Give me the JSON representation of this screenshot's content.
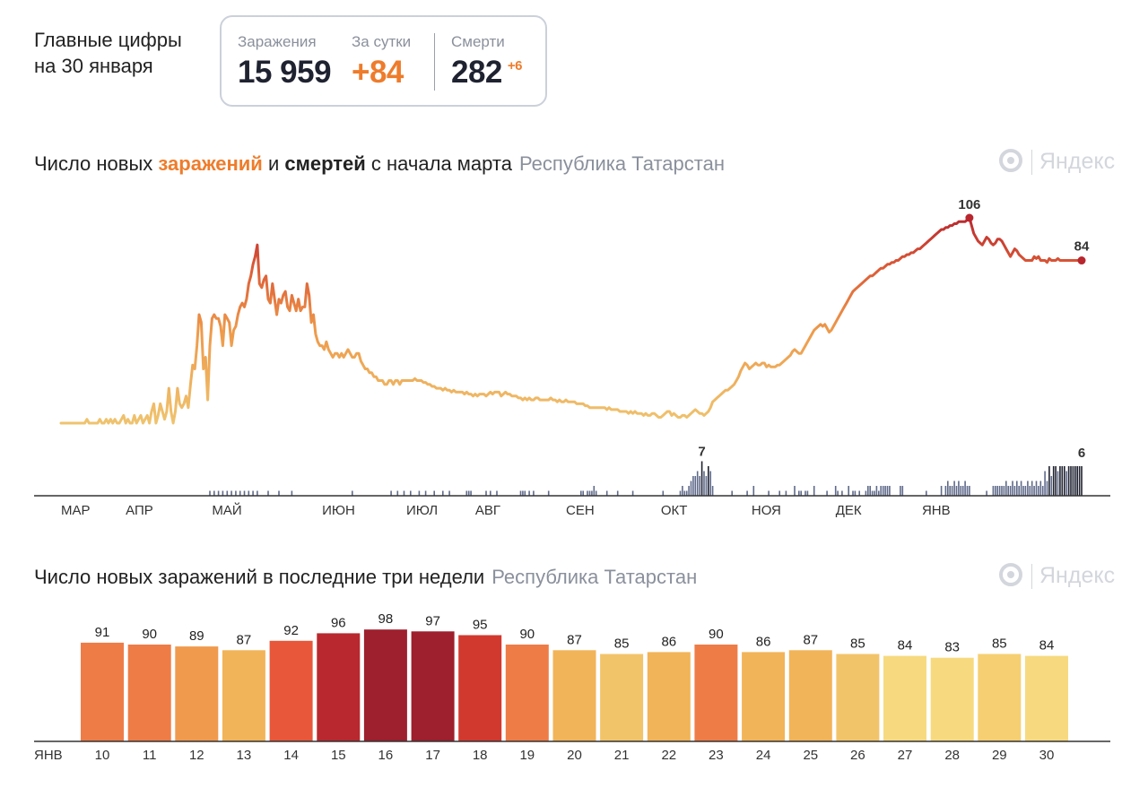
{
  "headline": {
    "line1": "Главные цифры",
    "line2": "на 30 января"
  },
  "stats": {
    "cases_label": "Заражения",
    "cases_value": "15 959",
    "daily_label": "За сутки",
    "daily_value": "+84",
    "deaths_label": "Смерти",
    "deaths_value": "282",
    "deaths_delta": "+6"
  },
  "logo_text": "Яндекс",
  "colors": {
    "accent": "#ee7c2b",
    "deaths_bar": "#5f6a8a",
    "axis": "#333333"
  },
  "chart_data": [
    {
      "type": "line",
      "title_parts": [
        "Число новых ",
        "заражений",
        " и ",
        "смертей",
        " с начала марта"
      ],
      "region": "Республика Татарстан",
      "months": [
        "МАР",
        "АПР",
        "МАЙ",
        "ИЮН",
        "ИЮЛ",
        "АВГ",
        "СЕН",
        "ОКТ",
        "НОЯ",
        "ДЕК",
        "ЯНВ"
      ],
      "month_index": [
        0,
        30,
        70,
        121,
        160,
        192,
        234,
        278,
        320,
        359,
        399
      ],
      "ylim": [
        0,
        106
      ],
      "cases_series": [
        0,
        0,
        0,
        0,
        0,
        0,
        0,
        0,
        0,
        0,
        0,
        0,
        2,
        0,
        0,
        0,
        0,
        0,
        2,
        0,
        0,
        2,
        0,
        2,
        0,
        2,
        0,
        0,
        2,
        4,
        0,
        2,
        0,
        0,
        4,
        0,
        2,
        4,
        0,
        2,
        4,
        0,
        6,
        10,
        0,
        4,
        10,
        6,
        2,
        6,
        18,
        6,
        0,
        6,
        18,
        10,
        8,
        10,
        14,
        8,
        20,
        30,
        28,
        40,
        56,
        52,
        28,
        34,
        12,
        40,
        54,
        56,
        54,
        54,
        50,
        40,
        56,
        54,
        52,
        40,
        48,
        50,
        56,
        60,
        62,
        60,
        64,
        72,
        76,
        82,
        86,
        92,
        72,
        70,
        74,
        76,
        64,
        62,
        72,
        64,
        56,
        64,
        62,
        66,
        68,
        60,
        58,
        66,
        62,
        58,
        64,
        58,
        60,
        60,
        72,
        66,
        52,
        56,
        46,
        42,
        40,
        40,
        38,
        42,
        38,
        36,
        34,
        36,
        36,
        34,
        36,
        34,
        36,
        38,
        36,
        34,
        34,
        36,
        36,
        32,
        30,
        28,
        28,
        26,
        26,
        24,
        24,
        22,
        22,
        22,
        20,
        20,
        22,
        22,
        20,
        22,
        22,
        20,
        22,
        22,
        22,
        22,
        22,
        22,
        23,
        22,
        22,
        22,
        21,
        21,
        20,
        20,
        19,
        19,
        18,
        18,
        18,
        17,
        18,
        17,
        17,
        16,
        17,
        16,
        16,
        16,
        16,
        15,
        16,
        15,
        15,
        14,
        15,
        14,
        15,
        15,
        15,
        14,
        15,
        16,
        15,
        16,
        16,
        16,
        14,
        15,
        16,
        15,
        15,
        14,
        14,
        14,
        13,
        13,
        12,
        13,
        12,
        13,
        12,
        12,
        13,
        13,
        12,
        12,
        12,
        12,
        12,
        13,
        12,
        12,
        11,
        12,
        11,
        11,
        12,
        11,
        11,
        11,
        11,
        10,
        10,
        10,
        10,
        9,
        9,
        8,
        8,
        8,
        8,
        8,
        8,
        8,
        8,
        7,
        8,
        7,
        7,
        7,
        7,
        6,
        6,
        6,
        6,
        5,
        6,
        5,
        6,
        5,
        5,
        5,
        4,
        5,
        4,
        4,
        5,
        5,
        4,
        3,
        3,
        4,
        5,
        6,
        6,
        4,
        5,
        4,
        3,
        3,
        4,
        4,
        3,
        4,
        5,
        6,
        7,
        6,
        5,
        5,
        4,
        5,
        6,
        8,
        11,
        12,
        13,
        14,
        15,
        16,
        17,
        17,
        18,
        19,
        20,
        22,
        24,
        27,
        29,
        31,
        30,
        28,
        29,
        30,
        31,
        30,
        30,
        31,
        31,
        29,
        30,
        29,
        29,
        29,
        30,
        30,
        31,
        32,
        33,
        34,
        35,
        37,
        38,
        37,
        36,
        36,
        38,
        40,
        42,
        44,
        46,
        48,
        49,
        50,
        51,
        50,
        51,
        49,
        47,
        48,
        50,
        52,
        54,
        56,
        58,
        60,
        62,
        64,
        66,
        68,
        69,
        70,
        71,
        72,
        73,
        74,
        75,
        76,
        76,
        77,
        78,
        79,
        80,
        80,
        81,
        82,
        82,
        83,
        83,
        84,
        84,
        85,
        86,
        86,
        87,
        87,
        88,
        88,
        89,
        90,
        90,
        91,
        92,
        93,
        94,
        95,
        96,
        97,
        98,
        99,
        100,
        100,
        101,
        101,
        102,
        102,
        103,
        103,
        104,
        104,
        104,
        104,
        105,
        106,
        102,
        98,
        96,
        94,
        93,
        92,
        94,
        96,
        95,
        93,
        92,
        93,
        95,
        95,
        94,
        92,
        90,
        88,
        86,
        88,
        90,
        89,
        87,
        86,
        85,
        84,
        84,
        84,
        84,
        86,
        85,
        86,
        84,
        84,
        84,
        83,
        85,
        84,
        84,
        84,
        85,
        84,
        84,
        84,
        84,
        84,
        84,
        84,
        84,
        84,
        84,
        84
      ],
      "deaths_series": [
        0,
        0,
        0,
        0,
        0,
        0,
        0,
        0,
        0,
        0,
        0,
        0,
        0,
        0,
        0,
        0,
        0,
        0,
        0,
        0,
        0,
        0,
        0,
        0,
        0,
        0,
        0,
        0,
        0,
        0,
        0,
        0,
        0,
        0,
        0,
        0,
        0,
        0,
        0,
        0,
        0,
        0,
        0,
        0,
        0,
        0,
        0,
        0,
        0,
        0,
        0,
        0,
        0,
        0,
        0,
        0,
        0,
        0,
        0,
        0,
        0,
        0,
        0,
        0,
        0,
        0,
        0,
        0,
        0,
        1,
        0,
        1,
        0,
        1,
        0,
        1,
        0,
        1,
        0,
        1,
        0,
        1,
        0,
        1,
        0,
        1,
        0,
        1,
        0,
        1,
        0,
        1,
        0,
        0,
        0,
        0,
        1,
        0,
        0,
        0,
        0,
        1,
        0,
        0,
        0,
        0,
        0,
        1,
        0,
        0,
        0,
        0,
        0,
        0,
        0,
        0,
        0,
        0,
        0,
        0,
        0,
        0,
        0,
        0,
        0,
        0,
        0,
        0,
        0,
        0,
        0,
        0,
        0,
        0,
        0,
        1,
        0,
        0,
        0,
        0,
        0,
        0,
        0,
        0,
        0,
        0,
        0,
        0,
        0,
        0,
        0,
        0,
        0,
        1,
        0,
        0,
        1,
        0,
        0,
        1,
        0,
        0,
        1,
        0,
        0,
        0,
        1,
        0,
        0,
        1,
        0,
        0,
        0,
        1,
        0,
        0,
        0,
        1,
        0,
        0,
        1,
        0,
        0,
        0,
        0,
        0,
        0,
        0,
        1,
        1,
        1,
        0,
        0,
        0,
        0,
        0,
        0,
        1,
        0,
        1,
        0,
        0,
        1,
        0,
        0,
        0,
        0,
        0,
        0,
        0,
        0,
        0,
        0,
        1,
        1,
        1,
        0,
        1,
        0,
        1,
        0,
        0,
        0,
        0,
        0,
        0,
        1,
        0,
        0,
        0,
        0,
        0,
        0,
        0,
        0,
        0,
        0,
        0,
        0,
        0,
        0,
        1,
        1,
        0,
        1,
        1,
        1,
        2,
        1,
        0,
        0,
        0,
        0,
        1,
        0,
        0,
        0,
        0,
        1,
        0,
        0,
        0,
        0,
        0,
        0,
        1,
        0,
        0,
        0,
        0,
        0,
        0,
        0,
        0,
        0,
        0,
        0,
        0,
        0,
        1,
        0,
        0,
        0,
        0,
        0,
        0,
        0,
        1,
        2,
        1,
        1,
        2,
        3,
        4,
        4,
        5,
        4,
        7,
        5,
        4,
        6,
        5,
        2,
        0,
        0,
        0,
        0,
        0,
        0,
        0,
        0,
        1,
        0,
        0,
        0,
        0,
        0,
        0,
        1,
        0,
        0,
        2,
        0,
        0,
        0,
        0,
        0,
        0,
        1,
        0,
        0,
        0,
        0,
        1,
        0,
        0,
        1,
        0,
        0,
        0,
        2,
        0,
        1,
        1,
        0,
        1,
        1,
        0,
        0,
        2,
        0,
        0,
        0,
        0,
        0,
        1,
        0,
        0,
        0,
        2,
        1,
        0,
        1,
        0,
        0,
        2,
        0,
        1,
        1,
        0,
        1,
        0,
        0,
        1,
        2,
        2,
        1,
        1,
        2,
        1,
        2,
        2,
        2,
        2,
        2,
        0,
        0,
        0,
        0,
        2,
        2,
        0,
        0,
        0,
        0,
        0,
        0,
        0,
        0,
        0,
        0,
        1,
        0,
        0,
        0,
        0,
        0,
        0,
        2,
        0,
        2,
        3,
        2,
        2,
        3,
        2,
        3,
        2,
        2,
        3,
        2,
        2,
        0,
        0,
        0,
        0,
        0,
        0,
        0,
        1,
        0,
        0,
        2,
        2,
        2,
        2,
        2,
        2,
        3,
        2,
        2,
        3,
        2,
        3,
        2,
        3,
        2,
        2,
        3,
        2,
        3,
        2,
        3,
        2,
        3,
        2,
        5,
        3,
        6,
        4,
        6,
        6,
        5,
        6,
        6,
        6,
        5,
        6,
        6,
        6,
        6,
        6,
        6,
        6
      ],
      "peak_label": "106",
      "last_label": "84",
      "death_peak_label": "7",
      "death_last_label": "6"
    },
    {
      "type": "bar",
      "title": "Число новых заражений в последние три недели",
      "region": "Республика Татарстан",
      "month_label": "ЯНВ",
      "categories": [
        "10",
        "11",
        "12",
        "13",
        "14",
        "15",
        "16",
        "17",
        "18",
        "19",
        "20",
        "21",
        "22",
        "23",
        "24",
        "25",
        "26",
        "27",
        "28",
        "29",
        "30"
      ],
      "values": [
        91,
        90,
        89,
        87,
        92,
        96,
        98,
        97,
        95,
        90,
        87,
        85,
        86,
        90,
        86,
        87,
        85,
        84,
        83,
        85,
        84
      ],
      "highlight_days": [
        "10",
        "16",
        "17",
        "23",
        "24",
        "30"
      ],
      "bar_colors": [
        "#ee7c47",
        "#ee7c47",
        "#f09a4e",
        "#f2b458",
        "#e9573a",
        "#b8282e",
        "#9e1f2d",
        "#9e1f2d",
        "#d2392e",
        "#ee7c47",
        "#f2b458",
        "#f2c46a",
        "#f2b458",
        "#ee7c47",
        "#f2b458",
        "#f2b458",
        "#f2c46a",
        "#f7da7f",
        "#f7da7f",
        "#f5cf72",
        "#f7da7f"
      ]
    }
  ]
}
